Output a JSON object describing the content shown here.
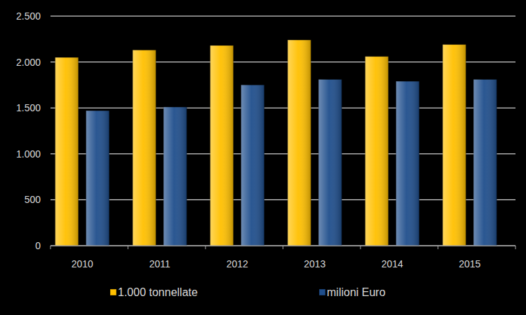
{
  "chart_data": {
    "type": "bar",
    "categories": [
      "2010",
      "2011",
      "2012",
      "2013",
      "2014",
      "2015"
    ],
    "series": [
      {
        "name": "1.000 tonnellate",
        "color": "#ffc000",
        "values": [
          2050,
          2130,
          2180,
          2240,
          2060,
          2190
        ]
      },
      {
        "name": "milioni Euro",
        "color": "#1f4e8c",
        "values": [
          1470,
          1510,
          1750,
          1810,
          1790,
          1810
        ]
      }
    ],
    "ylim": [
      0,
      2500
    ],
    "yticks": [
      0,
      500,
      {
        "value": 1000,
        "label": "1.000"
      },
      {
        "value": 1500,
        "label": "1.500"
      },
      {
        "value": 2000,
        "label": "2.000"
      },
      {
        "value": 2500,
        "label": "2.500"
      }
    ],
    "grid": true,
    "legend": "bottom"
  }
}
